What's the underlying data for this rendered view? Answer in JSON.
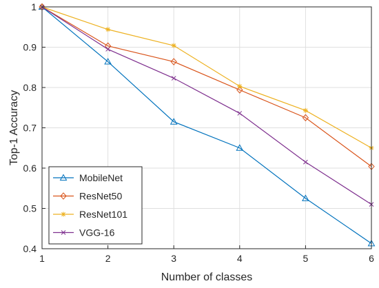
{
  "chart_data": {
    "type": "line",
    "xlabel": "Number of classes",
    "ylabel": "Top-1 Accuracy",
    "x": [
      1,
      2,
      3,
      4,
      5,
      6
    ],
    "xlim": [
      1,
      6
    ],
    "ylim": [
      0.4,
      1.0
    ],
    "xticks": [
      "1",
      "2",
      "3",
      "4",
      "5",
      "6"
    ],
    "yticks": [
      "0.4",
      "0.5",
      "0.6",
      "0.7",
      "0.8",
      "0.9",
      "1"
    ],
    "grid": true,
    "legend_position": "bottom-left",
    "series": [
      {
        "name": "MobileNet",
        "color": "#0072BD",
        "marker": "triangle",
        "values": [
          1.0,
          0.864,
          0.715,
          0.65,
          0.525,
          0.413
        ]
      },
      {
        "name": "ResNet50",
        "color": "#D95319",
        "marker": "diamond",
        "values": [
          1.0,
          0.903,
          0.864,
          0.794,
          0.725,
          0.604
        ]
      },
      {
        "name": "ResNet101",
        "color": "#EDB120",
        "marker": "asterisk",
        "values": [
          1.0,
          0.944,
          0.904,
          0.803,
          0.743,
          0.65
        ]
      },
      {
        "name": "VGG-16",
        "color": "#7E2F8E",
        "marker": "x",
        "values": [
          1.0,
          0.895,
          0.823,
          0.736,
          0.615,
          0.51
        ]
      }
    ]
  }
}
